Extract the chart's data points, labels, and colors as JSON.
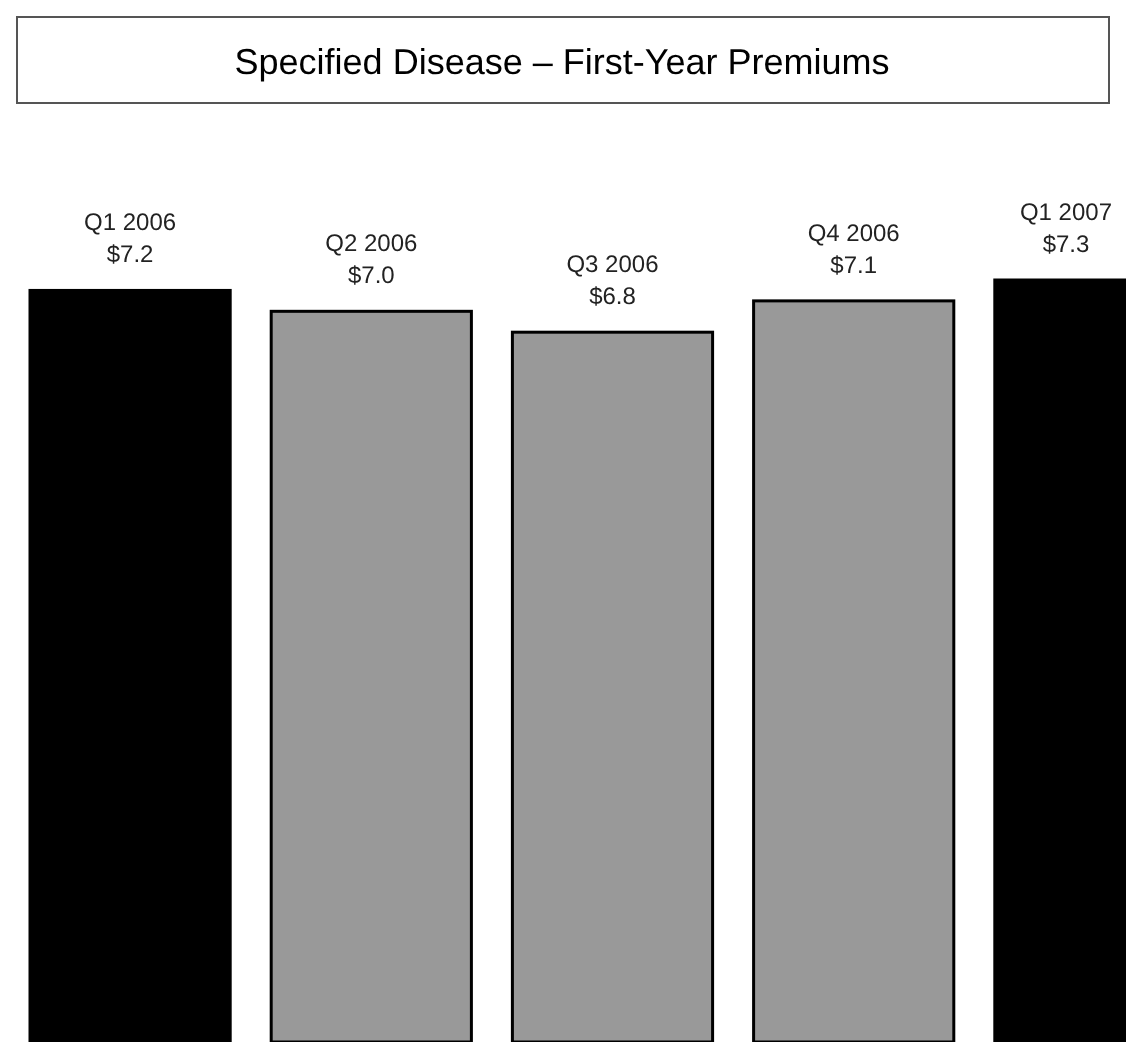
{
  "chart_data": {
    "type": "bar",
    "title": "Specified Disease  – First-Year Premiums",
    "categories": [
      "Q1 2006",
      "Q2 2006",
      "Q3 2006",
      "Q4 2006",
      "Q1 2007"
    ],
    "values": [
      7.2,
      7.0,
      6.8,
      7.1,
      7.3
    ],
    "colors": [
      "#000000",
      "#999999",
      "#999999",
      "#999999",
      "#000000"
    ],
    "value_labels": [
      "$7.2",
      "$7.0",
      "$6.8",
      "$7.1",
      "$7.3"
    ]
  }
}
